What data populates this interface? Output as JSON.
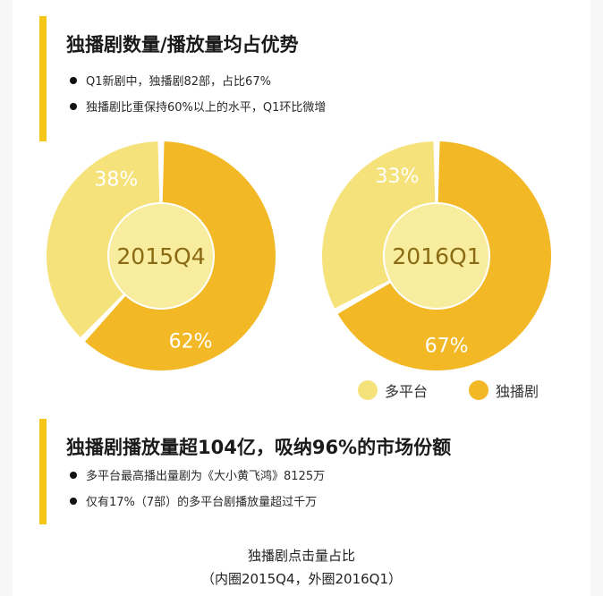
{
  "section1": {
    "title": "独播剧数量/播放量均占优势",
    "bullets": [
      "Q1新剧中，独播剧82部，占比67%",
      "独播剧比重保持60%以上的水平，Q1环比微增"
    ]
  },
  "section2": {
    "title": "独播剧播放量超104亿，吸纳96%的市场份额",
    "bullets": [
      "多平台最高播出量剧为《大小黄飞鸿》8125万",
      "仅有17%（7部）的多平台剧播放量超过千万"
    ]
  },
  "caption": {
    "line1": "独播剧点击量占比",
    "line2": "（内圈2015Q4，外圈2016Q1）"
  },
  "colors": {
    "accent_bar": "#f5c518",
    "multi_platform": "#f6e27a",
    "exclusive": "#f2b825",
    "center": "#f8ec9e"
  },
  "chart_data": [
    {
      "type": "pie",
      "center_label": "2015Q4",
      "slices": [
        {
          "name": "独播剧",
          "value": 62,
          "label": "62%"
        },
        {
          "name": "多平台",
          "value": 38,
          "label": "38%"
        }
      ]
    },
    {
      "type": "pie",
      "center_label": "2016Q1",
      "slices": [
        {
          "name": "独播剧",
          "value": 67,
          "label": "67%"
        },
        {
          "name": "多平台",
          "value": 33,
          "label": "33%"
        }
      ]
    }
  ],
  "legend": [
    "多平台",
    "独播剧"
  ]
}
